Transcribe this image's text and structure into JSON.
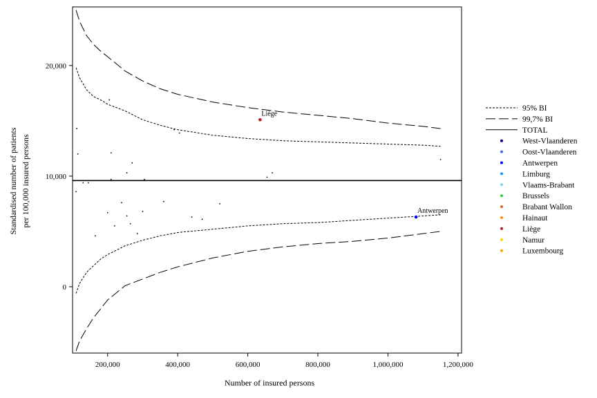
{
  "chart_data": {
    "type": "scatter",
    "title": "",
    "xlabel": "Number of insured persons",
    "ylabel_lines": [
      "Standardised number of patients",
      "per 100,000 insured persons"
    ],
    "xlim": [
      100000,
      1210000
    ],
    "ylim": [
      -6000,
      25300
    ],
    "x_ticks": [
      {
        "value": 200000,
        "label": "200,000"
      },
      {
        "value": 400000,
        "label": "400,000"
      },
      {
        "value": 600000,
        "label": "600,000"
      },
      {
        "value": 800000,
        "label": "800,000"
      },
      {
        "value": 1000000,
        "label": "1,000,000"
      },
      {
        "value": 1200000,
        "label": "1,200,000"
      }
    ],
    "y_ticks": [
      {
        "value": 0,
        "label": "0"
      },
      {
        "value": 10000,
        "label": "10,000"
      },
      {
        "value": 20000,
        "label": "20,000"
      }
    ],
    "total": 9600,
    "limits_x": [
      110000,
      120000,
      140000,
      160000,
      180000,
      200000,
      250000,
      300000,
      350000,
      400000,
      500000,
      600000,
      700000,
      800000,
      900000,
      1000000,
      1100000,
      1150000
    ],
    "limits": {
      "upper_95": [
        19800,
        18900,
        17800,
        17200,
        16900,
        16500,
        15900,
        15100,
        14600,
        14200,
        13700,
        13400,
        13200,
        13100,
        13000,
        12900,
        12800,
        12700
      ],
      "lower_95": [
        -600,
        300,
        1300,
        1900,
        2500,
        2900,
        3700,
        4200,
        4600,
        4900,
        5200,
        5500,
        5700,
        5800,
        6000,
        6200,
        6400,
        6500
      ],
      "upper_997": [
        25000,
        24000,
        22700,
        21900,
        21300,
        20800,
        19500,
        18600,
        17900,
        17400,
        16700,
        16200,
        15800,
        15500,
        15200,
        14800,
        14500,
        14300
      ],
      "lower_997": [
        -5800,
        -4900,
        -3800,
        -2800,
        -2000,
        -1200,
        100,
        700,
        1300,
        1800,
        2600,
        3200,
        3600,
        3900,
        4100,
        4400,
        4800,
        5000
      ]
    },
    "series": [
      {
        "name": "West-Vlaanderen",
        "color": "#00008b",
        "points": []
      },
      {
        "name": "Oost-Vlaanderen",
        "color": "#4169e1",
        "points": []
      },
      {
        "name": "Antwerpen",
        "color": "#0000ff",
        "points": [
          [
            1080000,
            6300
          ]
        ]
      },
      {
        "name": "Limburg",
        "color": "#1e90ff",
        "points": []
      },
      {
        "name": "Vlaams-Brabant",
        "color": "#87cefa",
        "points": []
      },
      {
        "name": "Brussels",
        "color": "#32cd32",
        "points": []
      },
      {
        "name": "Brabant Wallon",
        "color": "#d2691e",
        "points": []
      },
      {
        "name": "Hainaut",
        "color": "#ff8c00",
        "points": []
      },
      {
        "name": "Liège",
        "color": "#b22222",
        "points": [
          [
            635000,
            15100
          ]
        ]
      },
      {
        "name": "Namur",
        "color": "#ffd700",
        "points": []
      },
      {
        "name": "Luxembourg",
        "color": "#ffa500",
        "points": []
      }
    ],
    "other_points": [
      [
        110000,
        8600
      ],
      [
        112000,
        14300
      ],
      [
        115000,
        12000
      ],
      [
        130000,
        9400
      ],
      [
        145000,
        9400
      ],
      [
        165000,
        4600
      ],
      [
        200000,
        6700
      ],
      [
        205000,
        16900
      ],
      [
        210000,
        12100
      ],
      [
        210000,
        9700
      ],
      [
        220000,
        5500
      ],
      [
        240000,
        7600
      ],
      [
        255000,
        6400
      ],
      [
        255000,
        10300
      ],
      [
        265000,
        5700
      ],
      [
        270000,
        11200
      ],
      [
        285000,
        4800
      ],
      [
        300000,
        6800
      ],
      [
        305000,
        9700
      ],
      [
        360000,
        7700
      ],
      [
        390000,
        14200
      ],
      [
        405000,
        13900
      ],
      [
        440000,
        6300
      ],
      [
        470000,
        6100
      ],
      [
        520000,
        7500
      ],
      [
        655000,
        9900
      ],
      [
        670000,
        10300
      ],
      [
        1150000,
        11500
      ]
    ],
    "annotations": [
      {
        "text": "Liège",
        "x": 635000,
        "y": 15100
      },
      {
        "text": "Antwerpen",
        "x": 1080000,
        "y": 6300
      }
    ],
    "legend": {
      "placement": "right",
      "lines": [
        {
          "label": "95% BI",
          "style": "dotted"
        },
        {
          "label": "99,7% BI",
          "style": "dashed"
        },
        {
          "label": "TOTAL",
          "style": "solid"
        }
      ]
    }
  }
}
